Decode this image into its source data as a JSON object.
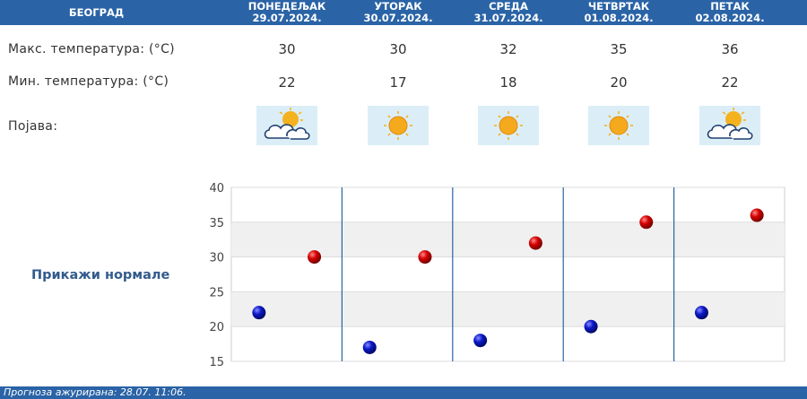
{
  "header": {
    "city": "БЕОГРАД",
    "days": [
      {
        "name": "ПОНЕДЕЉАК",
        "date": "29.07.2024."
      },
      {
        "name": "УТОРАК",
        "date": "30.07.2024."
      },
      {
        "name": "СРЕДА",
        "date": "31.07.2024."
      },
      {
        "name": "ЧЕТВРТАК",
        "date": "01.08.2024."
      },
      {
        "name": "ПЕТАК",
        "date": "02.08.2024."
      }
    ]
  },
  "rows": {
    "max_label": "Макс. температура: (°C)",
    "min_label": "Мин. температура: (°C)",
    "phenomenon_label": "Појава:",
    "max_values": [
      "30",
      "30",
      "32",
      "35",
      "36"
    ],
    "min_values": [
      "22",
      "17",
      "18",
      "20",
      "22"
    ],
    "icons": [
      "partly-cloudy-icon",
      "sun-icon",
      "sun-icon",
      "sun-icon",
      "partly-cloudy-icon"
    ]
  },
  "normals_button": "Прикажи нормале",
  "footer": {
    "updated": "Прогноза ажурирана:  28.07. 11:06."
  },
  "colors": {
    "header_bg": "#2a63a6",
    "max_dot": "#cc0000",
    "min_dot": "#0a18b8",
    "icon_bg": "#dbeef7"
  },
  "chart_data": {
    "type": "scatter",
    "categories": [
      "ПОНЕДЕЉАК",
      "УТОРАК",
      "СРЕДА",
      "ЧЕТВРТАК",
      "ПЕТАК"
    ],
    "series": [
      {
        "values": [
          30,
          30,
          32,
          35,
          36
        ],
        "color": "#cc0000"
      },
      {
        "values": [
          22,
          17,
          18,
          20,
          22
        ],
        "color": "#0a18b8"
      }
    ],
    "yticks": [
      "15",
      "20",
      "25",
      "30",
      "35",
      "40"
    ],
    "ylim": [
      15,
      40
    ],
    "grid": true,
    "alternating_bands": true
  }
}
